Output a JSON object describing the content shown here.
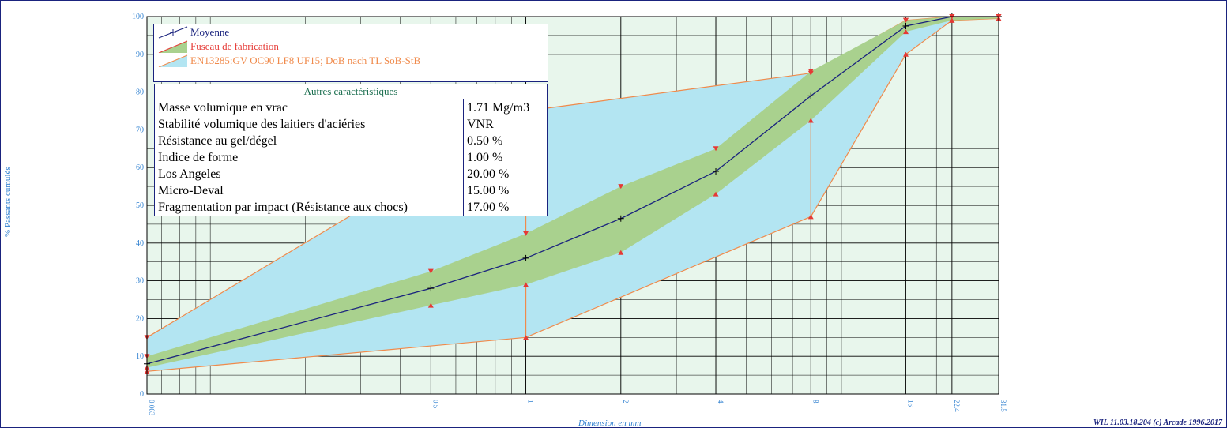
{
  "chart_data": {
    "type": "line",
    "x_scale": "log",
    "xlabel": "Dimension en mm",
    "ylabel": "% Passants cumulés",
    "ylim": [
      0,
      100
    ],
    "yticks": [
      0,
      10,
      20,
      30,
      40,
      50,
      60,
      70,
      80,
      90,
      100
    ],
    "x": [
      0.063,
      0.5,
      1,
      2,
      4,
      8,
      16,
      22.4,
      31.5
    ],
    "x_tick_labels": [
      "0.063",
      "0.5",
      "1",
      "2",
      "4",
      "8",
      "16",
      "22.4",
      "31.5"
    ],
    "grid": true,
    "legend_position": "top-left",
    "series": [
      {
        "name": "Moyenne",
        "kind": "line",
        "color": "#1a237e",
        "values": [
          8,
          28,
          36,
          46.5,
          59,
          79,
          97.5,
          100,
          100
        ]
      },
      {
        "name": "Fuseau de fabrication",
        "kind": "band",
        "fill": "#a9d18e",
        "edge": "#e53935",
        "lower": [
          7,
          23.5,
          29,
          37.5,
          53,
          72.5,
          96,
          99,
          99.5
        ],
        "upper": [
          10,
          32.5,
          42.5,
          55,
          65,
          85.5,
          99,
          100,
          100
        ]
      },
      {
        "name": "EN13285:GV OC90 LF8 UF15; DoB nach TL SoB-StB",
        "kind": "envelope",
        "fill": "#b3e5f2",
        "edge": "#f08a4b",
        "lower_x": [
          0.063,
          1,
          8,
          16,
          22.4,
          31.5
        ],
        "lower": [
          6,
          15,
          47,
          90,
          99,
          99.5
        ],
        "upper_x": [
          0.063,
          1,
          8,
          16,
          22.4,
          31.5
        ],
        "upper": [
          15,
          75,
          85,
          99,
          100,
          100
        ]
      }
    ]
  },
  "legend": {
    "items": [
      {
        "label": "Moyenne",
        "color": "#1a237e"
      },
      {
        "label": "Fuseau de fabrication",
        "color": "#e53935"
      },
      {
        "label": "EN13285:GV OC90 LF8 UF15; DoB nach TL SoB-StB",
        "color": "#f08a4b"
      }
    ]
  },
  "characteristics": {
    "title": "Autres caractéristiques",
    "rows": [
      {
        "label": "Masse volumique en vrac",
        "value": "1.71 Mg/m3"
      },
      {
        "label": "Stabilité volumique des laitiers d'aciéries",
        "value": "VNR"
      },
      {
        "label": "Résistance au gel/dégel",
        "value": "0.50 %"
      },
      {
        "label": "Indice de forme",
        "value": "1.00 %"
      },
      {
        "label": "Los Angeles",
        "value": "20.00 %"
      },
      {
        "label": "Micro-Deval",
        "value": "15.00 %"
      },
      {
        "label": "Fragmentation par impact (Résistance aux chocs)",
        "value": "17.00 %"
      }
    ]
  },
  "footer": {
    "text": "WIL 11.03.18.204 (c) Arcade 1996.2017"
  }
}
